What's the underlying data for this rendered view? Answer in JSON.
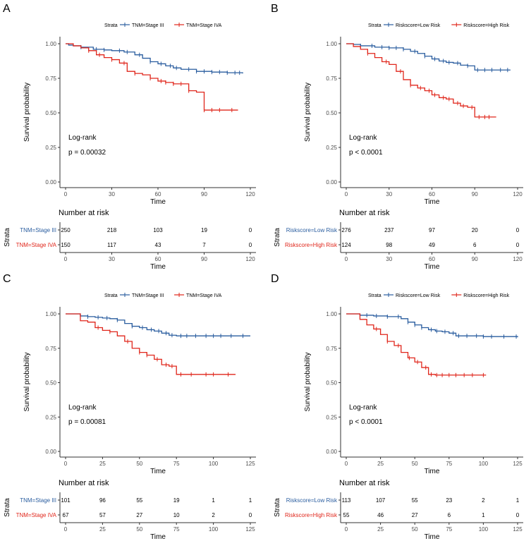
{
  "colors": {
    "blue": "#2a5d9f",
    "red": "#e0261b",
    "axis": "#333333",
    "text": "#000000"
  },
  "chart_data": [
    {
      "panel_label": "A",
      "type": "line",
      "subtype": "kaplan-meier",
      "legend_title": "Strata",
      "xlabel": "Time",
      "ylabel": "Survival probability",
      "xlim": [
        0,
        120
      ],
      "ylim": [
        0,
        1
      ],
      "xticks": [
        "0",
        "30",
        "60",
        "90",
        "120"
      ],
      "yticks": [
        "0.00",
        "0.25",
        "0.50",
        "0.75",
        "1.00"
      ],
      "test_label": "Log-rank",
      "p_value": "p = 0.00032",
      "series": [
        {
          "name": "TNM=Stage III",
          "color": "blue",
          "x": [
            0,
            2,
            5,
            10,
            18,
            25,
            30,
            38,
            45,
            50,
            55,
            60,
            65,
            70,
            75,
            85,
            90,
            95,
            100,
            105,
            110,
            115
          ],
          "y": [
            1.0,
            0.99,
            0.985,
            0.975,
            0.96,
            0.955,
            0.95,
            0.94,
            0.92,
            0.895,
            0.87,
            0.855,
            0.84,
            0.825,
            0.815,
            0.8,
            0.8,
            0.795,
            0.795,
            0.79,
            0.79,
            0.785
          ],
          "censor_x": [
            10,
            20,
            25,
            35,
            40,
            48,
            55,
            62,
            68,
            72,
            80,
            85,
            90,
            95,
            100,
            105,
            110,
            113
          ]
        },
        {
          "name": "TNM=Stage IVA",
          "color": "red",
          "x": [
            0,
            5,
            10,
            15,
            20,
            25,
            30,
            35,
            40,
            45,
            50,
            55,
            60,
            65,
            70,
            80,
            85,
            90,
            100,
            112
          ],
          "y": [
            1.0,
            0.985,
            0.97,
            0.95,
            0.92,
            0.9,
            0.885,
            0.86,
            0.8,
            0.785,
            0.775,
            0.75,
            0.73,
            0.72,
            0.71,
            0.66,
            0.65,
            0.52,
            0.52,
            0.52
          ],
          "censor_x": [
            15,
            22,
            30,
            38,
            45,
            55,
            62,
            65,
            70,
            75,
            80,
            90,
            95,
            100,
            108
          ]
        }
      ],
      "risk_table": {
        "title": "Number at risk",
        "ylabel": "Strata",
        "xlabel": "Time",
        "xticks": [
          "0",
          "30",
          "60",
          "90",
          "120"
        ],
        "rows": [
          {
            "label": "TNM=Stage III",
            "color": "blue",
            "values": [
              "250",
              "218",
              "103",
              "19",
              "0"
            ]
          },
          {
            "label": "TNM=Stage IVA",
            "color": "red",
            "values": [
              "150",
              "117",
              "43",
              "7",
              "0"
            ]
          }
        ]
      }
    },
    {
      "panel_label": "B",
      "type": "line",
      "subtype": "kaplan-meier",
      "legend_title": "Strata",
      "xlabel": "Time",
      "ylabel": "Survival probability",
      "xlim": [
        0,
        120
      ],
      "ylim": [
        0,
        1
      ],
      "xticks": [
        "0",
        "30",
        "60",
        "90",
        "120"
      ],
      "yticks": [
        "0.00",
        "0.25",
        "0.50",
        "0.75",
        "1.00"
      ],
      "test_label": "Log-rank",
      "p_value": "p < 0.0001",
      "series": [
        {
          "name": "Riskscore=Low Risk",
          "color": "blue",
          "x": [
            0,
            5,
            10,
            20,
            30,
            40,
            45,
            50,
            55,
            60,
            65,
            70,
            75,
            80,
            85,
            90,
            95,
            100,
            110,
            115
          ],
          "y": [
            1.0,
            0.995,
            0.985,
            0.975,
            0.97,
            0.96,
            0.945,
            0.93,
            0.91,
            0.89,
            0.875,
            0.865,
            0.86,
            0.845,
            0.84,
            0.81,
            0.81,
            0.81,
            0.81,
            0.81
          ],
          "censor_x": [
            10,
            18,
            25,
            30,
            35,
            40,
            48,
            55,
            62,
            68,
            72,
            78,
            85,
            92,
            97,
            102,
            108,
            113
          ]
        },
        {
          "name": "Riskscore=High Risk",
          "color": "red",
          "x": [
            0,
            5,
            10,
            15,
            20,
            25,
            30,
            35,
            40,
            45,
            50,
            55,
            60,
            65,
            70,
            75,
            80,
            85,
            90,
            100,
            105
          ],
          "y": [
            1.0,
            0.98,
            0.96,
            0.93,
            0.9,
            0.87,
            0.85,
            0.8,
            0.74,
            0.7,
            0.68,
            0.66,
            0.63,
            0.61,
            0.6,
            0.57,
            0.55,
            0.54,
            0.47,
            0.47,
            0.47
          ],
          "censor_x": [
            15,
            28,
            38,
            45,
            52,
            58,
            62,
            68,
            72,
            78,
            82,
            88,
            93,
            97,
            100
          ]
        }
      ],
      "risk_table": {
        "title": "Number at risk",
        "ylabel": "Strata",
        "xlabel": "Time",
        "xticks": [
          "0",
          "30",
          "60",
          "90",
          "120"
        ],
        "rows": [
          {
            "label": "Riskscore=Low Risk",
            "color": "blue",
            "values": [
              "276",
              "237",
              "97",
              "20",
              "0"
            ]
          },
          {
            "label": "Riskscore=High Risk",
            "color": "red",
            "values": [
              "124",
              "98",
              "49",
              "6",
              "0"
            ]
          }
        ]
      }
    },
    {
      "panel_label": "C",
      "type": "line",
      "subtype": "kaplan-meier",
      "legend_title": "Strata",
      "xlabel": "Time",
      "ylabel": "Survival probability",
      "xlim": [
        0,
        125
      ],
      "ylim": [
        0,
        1
      ],
      "xticks": [
        "0",
        "25",
        "50",
        "75",
        "100",
        "125"
      ],
      "yticks": [
        "0.00",
        "0.25",
        "0.50",
        "0.75",
        "1.00"
      ],
      "test_label": "Log-rank",
      "p_value": "p = 0.00081",
      "series": [
        {
          "name": "TNM=Stage III",
          "color": "blue",
          "x": [
            0,
            10,
            15,
            20,
            25,
            30,
            35,
            40,
            45,
            50,
            55,
            60,
            65,
            70,
            75,
            100,
            125
          ],
          "y": [
            1.0,
            0.985,
            0.98,
            0.975,
            0.97,
            0.965,
            0.955,
            0.93,
            0.91,
            0.9,
            0.885,
            0.875,
            0.86,
            0.845,
            0.84,
            0.84,
            0.84
          ],
          "censor_x": [
            15,
            22,
            28,
            35,
            45,
            52,
            58,
            63,
            68,
            72,
            78,
            82,
            88,
            95,
            100,
            105,
            112,
            120
          ]
        },
        {
          "name": "TNM=Stage IVA",
          "color": "red",
          "x": [
            0,
            10,
            15,
            20,
            25,
            30,
            35,
            40,
            45,
            50,
            55,
            60,
            65,
            70,
            75,
            80,
            100,
            115
          ],
          "y": [
            1.0,
            0.95,
            0.94,
            0.9,
            0.88,
            0.87,
            0.84,
            0.8,
            0.75,
            0.72,
            0.7,
            0.67,
            0.63,
            0.62,
            0.56,
            0.56,
            0.56,
            0.56
          ],
          "censor_x": [
            22,
            30,
            42,
            50,
            55,
            62,
            68,
            72,
            78,
            85,
            95,
            100,
            110
          ]
        }
      ],
      "risk_table": {
        "title": "Number at risk",
        "ylabel": "Strata",
        "xlabel": "Time",
        "xticks": [
          "0",
          "25",
          "50",
          "75",
          "100",
          "125"
        ],
        "rows": [
          {
            "label": "TNM=Stage III",
            "color": "blue",
            "values": [
              "101",
              "96",
              "55",
              "19",
              "1",
              "1"
            ]
          },
          {
            "label": "TNM=Stage IVA",
            "color": "red",
            "values": [
              "67",
              "57",
              "27",
              "10",
              "2",
              "0"
            ]
          }
        ]
      }
    },
    {
      "panel_label": "D",
      "type": "line",
      "subtype": "kaplan-meier",
      "legend_title": "Strata",
      "xlabel": "Time",
      "ylabel": "Survival probability",
      "xlim": [
        0,
        125
      ],
      "ylim": [
        0,
        1
      ],
      "xticks": [
        "0",
        "25",
        "50",
        "75",
        "100",
        "125"
      ],
      "yticks": [
        "0.00",
        "0.25",
        "0.50",
        "0.75",
        "1.00"
      ],
      "test_label": "Log-rank",
      "p_value": "p < 0.0001",
      "series": [
        {
          "name": "Riskscore=Low Risk",
          "color": "blue",
          "x": [
            0,
            10,
            20,
            30,
            40,
            45,
            50,
            55,
            60,
            65,
            70,
            75,
            80,
            90,
            100,
            110,
            125
          ],
          "y": [
            1.0,
            0.99,
            0.985,
            0.98,
            0.965,
            0.94,
            0.92,
            0.9,
            0.885,
            0.875,
            0.87,
            0.86,
            0.84,
            0.84,
            0.835,
            0.835,
            0.83
          ],
          "censor_x": [
            15,
            22,
            30,
            38,
            45,
            50,
            55,
            62,
            66,
            72,
            78,
            82,
            88,
            95,
            100,
            106,
            115,
            124
          ]
        },
        {
          "name": "Riskscore=High Risk",
          "color": "red",
          "x": [
            0,
            10,
            15,
            20,
            25,
            30,
            35,
            40,
            45,
            50,
            55,
            60,
            65,
            75,
            85,
            100,
            102
          ],
          "y": [
            1.0,
            0.96,
            0.92,
            0.89,
            0.85,
            0.8,
            0.77,
            0.72,
            0.68,
            0.65,
            0.61,
            0.56,
            0.555,
            0.555,
            0.555,
            0.555,
            0.555
          ],
          "censor_x": [
            22,
            30,
            38,
            46,
            52,
            58,
            62,
            66,
            70,
            75,
            80,
            86,
            92,
            100
          ]
        }
      ],
      "risk_table": {
        "title": "Number at risk",
        "ylabel": "Strata",
        "xlabel": "Time",
        "xticks": [
          "0",
          "25",
          "50",
          "75",
          "100",
          "125"
        ],
        "rows": [
          {
            "label": "Riskscore=Low Risk",
            "color": "blue",
            "values": [
              "113",
              "107",
              "55",
              "23",
              "2",
              "1"
            ]
          },
          {
            "label": "Riskscore=High Risk",
            "color": "red",
            "values": [
              "55",
              "46",
              "27",
              "6",
              "1",
              "0"
            ]
          }
        ]
      }
    }
  ]
}
